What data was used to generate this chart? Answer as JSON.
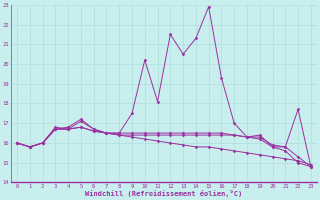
{
  "x": [
    0,
    1,
    2,
    3,
    4,
    5,
    6,
    7,
    8,
    9,
    10,
    11,
    12,
    13,
    14,
    15,
    16,
    17,
    18,
    19,
    20,
    21,
    22,
    23
  ],
  "line1": [
    16.0,
    15.8,
    16.0,
    16.8,
    16.7,
    17.1,
    16.7,
    16.5,
    16.5,
    17.5,
    20.2,
    18.1,
    21.5,
    20.5,
    21.3,
    22.9,
    19.3,
    17.0,
    16.3,
    16.4,
    15.8,
    15.8,
    17.7,
    14.8
  ],
  "line2": [
    16.0,
    15.8,
    16.0,
    16.7,
    16.7,
    16.8,
    16.6,
    16.5,
    16.4,
    16.4,
    16.4,
    16.4,
    16.4,
    16.4,
    16.4,
    16.4,
    16.4,
    16.4,
    16.3,
    16.2,
    15.8,
    15.6,
    15.0,
    14.8
  ],
  "line3": [
    16.0,
    15.8,
    16.0,
    16.7,
    16.7,
    16.8,
    16.6,
    16.5,
    16.4,
    16.3,
    16.2,
    16.1,
    16.0,
    15.9,
    15.8,
    15.8,
    15.7,
    15.6,
    15.5,
    15.4,
    15.3,
    15.2,
    15.1,
    14.9
  ],
  "line4": [
    16.0,
    15.8,
    16.0,
    16.7,
    16.8,
    17.2,
    16.7,
    16.5,
    16.5,
    16.5,
    16.5,
    16.5,
    16.5,
    16.5,
    16.5,
    16.5,
    16.5,
    16.4,
    16.3,
    16.3,
    15.9,
    15.8,
    15.3,
    14.8
  ],
  "line_color": "#9b30a0",
  "bg_color": "#c8eeee",
  "grid_color": "#b0dddd",
  "ylim": [
    14,
    23
  ],
  "yticks": [
    14,
    15,
    16,
    17,
    18,
    19,
    20,
    21,
    22,
    23
  ],
  "xticks": [
    0,
    1,
    2,
    3,
    4,
    5,
    6,
    7,
    8,
    9,
    10,
    11,
    12,
    13,
    14,
    15,
    16,
    17,
    18,
    19,
    20,
    21,
    22,
    23
  ],
  "xlabel": "Windchill (Refroidissement éolien,°C)",
  "xlabel_color": "#9b30a0"
}
